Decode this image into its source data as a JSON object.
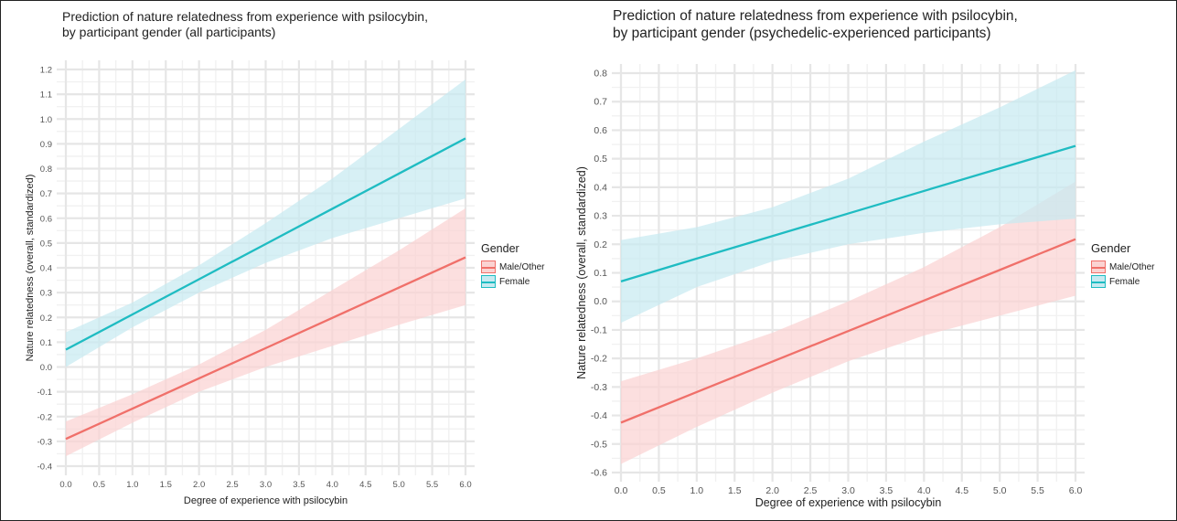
{
  "chart_data": [
    {
      "type": "line",
      "title": [
        "Prediction of nature relatedness from experience with psilocybin,",
        "by participant gender (all participants)"
      ],
      "xlabel": "Degree of experience with psilocybin",
      "ylabel": "Nature relatedness (overall, standardized)",
      "xlim": [
        0.0,
        6.0
      ],
      "ylim": [
        -0.4,
        1.2
      ],
      "x_ticks": [
        "0.0",
        "0.5",
        "1.0",
        "1.5",
        "2.0",
        "2.5",
        "3.0",
        "3.5",
        "4.0",
        "4.5",
        "5.0",
        "5.5",
        "6.0"
      ],
      "y_ticks": [
        "-0.4",
        "-0.3",
        "-0.2",
        "-0.1",
        "0.0",
        "0.1",
        "0.2",
        "0.3",
        "0.4",
        "0.5",
        "0.6",
        "0.7",
        "0.8",
        "0.9",
        "1.0",
        "1.1",
        "1.2"
      ],
      "grid": true,
      "legend": {
        "title": "Gender",
        "placement": "right"
      },
      "series": [
        {
          "name": "Male/Other",
          "color": "#F0706A",
          "band_color": "#FBD3D2",
          "x": [
            0,
            1,
            2,
            3,
            4,
            5,
            6
          ],
          "y": [
            -0.29,
            -0.168,
            -0.046,
            0.076,
            0.198,
            0.32,
            0.442
          ],
          "lower": [
            -0.36,
            -0.225,
            -0.1,
            0.0,
            0.085,
            0.17,
            0.25
          ],
          "upper": [
            -0.22,
            -0.11,
            0.01,
            0.15,
            0.31,
            0.47,
            0.64
          ]
        },
        {
          "name": "Female",
          "color": "#1FBCC2",
          "band_color": "#C8EAF1",
          "x": [
            0,
            1,
            2,
            3,
            4,
            5,
            6
          ],
          "y": [
            0.07,
            0.212,
            0.354,
            0.496,
            0.638,
            0.78,
            0.922
          ],
          "lower": [
            0.0,
            0.16,
            0.3,
            0.42,
            0.52,
            0.6,
            0.68
          ],
          "upper": [
            0.14,
            0.26,
            0.41,
            0.58,
            0.76,
            0.96,
            1.16
          ]
        }
      ]
    },
    {
      "type": "line",
      "title": [
        "Prediction of nature relatedness from experience with psilocybin,",
        "by participant gender (psychedelic-experienced participants)"
      ],
      "xlabel": "Degree of experience with psilocybin",
      "ylabel": "Nature relatedness (overall, standardized)",
      "xlim": [
        0.0,
        6.0
      ],
      "ylim": [
        -0.6,
        0.8
      ],
      "x_ticks": [
        "0.0",
        "0.5",
        "1.0",
        "1.5",
        "2.0",
        "2.5",
        "3.0",
        "3.5",
        "4.0",
        "4.5",
        "5.0",
        "5.5",
        "6.0"
      ],
      "y_ticks": [
        "-0.6",
        "-0.5",
        "-0.4",
        "-0.3",
        "-0.2",
        "-0.1",
        "0.0",
        "0.1",
        "0.2",
        "0.3",
        "0.4",
        "0.5",
        "0.6",
        "0.7",
        "0.8"
      ],
      "grid": true,
      "legend": {
        "title": "Gender",
        "placement": "right"
      },
      "series": [
        {
          "name": "Male/Other",
          "color": "#F0706A",
          "band_color": "#FBD3D2",
          "x": [
            0,
            1,
            2,
            3,
            4,
            5,
            6
          ],
          "y": [
            -0.425,
            -0.318,
            -0.211,
            -0.104,
            0.003,
            0.11,
            0.218
          ],
          "lower": [
            -0.57,
            -0.44,
            -0.32,
            -0.21,
            -0.12,
            -0.05,
            0.02
          ],
          "upper": [
            -0.28,
            -0.2,
            -0.11,
            0.0,
            0.12,
            0.26,
            0.42
          ]
        },
        {
          "name": "Female",
          "color": "#1FBCC2",
          "band_color": "#C8EAF1",
          "x": [
            0,
            1,
            2,
            3,
            4,
            5,
            6
          ],
          "y": [
            0.07,
            0.15,
            0.229,
            0.308,
            0.387,
            0.466,
            0.545
          ],
          "lower": [
            -0.075,
            0.05,
            0.14,
            0.2,
            0.24,
            0.27,
            0.29
          ],
          "upper": [
            0.215,
            0.26,
            0.33,
            0.43,
            0.56,
            0.68,
            0.81
          ]
        }
      ]
    }
  ]
}
